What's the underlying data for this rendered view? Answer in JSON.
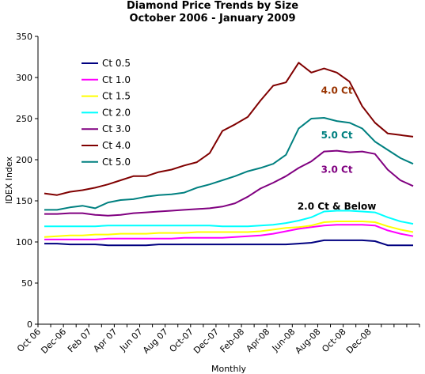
{
  "chart_data": {
    "type": "line",
    "title": "Diamond Price Trends by Size",
    "subtitle": "October 2006 - January 2009",
    "xlabel": "Monthly",
    "ylabel": "IDEX Index",
    "ylim": [
      0,
      350
    ],
    "yticks": [
      0,
      50,
      100,
      150,
      200,
      250,
      300,
      350
    ],
    "grid": false,
    "legend_position": "top-left",
    "x_tick_labels": [
      "Oct 06",
      "Dec-06",
      "Feb 07",
      "Apr 07",
      "Jun 07",
      "Aug 07",
      "Oct-07",
      "Dec-07",
      "Feb-08",
      "Apr-08",
      "Jun-08",
      "Aug-08",
      "Oct-08",
      "Dec-08"
    ],
    "x_tick_every": 2,
    "series": [
      {
        "name": "Ct 0.5",
        "color": "#000080",
        "values": [
          98,
          98,
          97,
          97,
          97,
          96,
          96,
          96,
          96,
          97,
          97,
          97,
          97,
          97,
          97,
          97,
          97,
          97,
          97,
          97,
          98,
          99,
          102,
          102,
          102,
          102,
          101,
          96,
          96,
          96
        ]
      },
      {
        "name": "Ct 1.0",
        "color": "#ff00ff",
        "values": [
          103,
          103,
          103,
          103,
          103,
          104,
          104,
          104,
          104,
          104,
          104,
          105,
          105,
          105,
          105,
          106,
          107,
          108,
          110,
          113,
          116,
          118,
          120,
          121,
          121,
          121,
          120,
          114,
          110,
          107
        ]
      },
      {
        "name": "Ct 1.5",
        "color": "#ffff00",
        "values": [
          106,
          107,
          108,
          108,
          109,
          109,
          110,
          110,
          110,
          111,
          111,
          111,
          112,
          112,
          112,
          112,
          112,
          113,
          115,
          117,
          118,
          120,
          124,
          125,
          125,
          125,
          124,
          119,
          115,
          112
        ]
      },
      {
        "name": "Ct 2.0",
        "color": "#00ffff",
        "values": [
          119,
          119,
          119,
          119,
          119,
          120,
          120,
          120,
          120,
          120,
          120,
          120,
          120,
          120,
          119,
          119,
          119,
          120,
          121,
          123,
          126,
          130,
          137,
          138,
          138,
          137,
          136,
          130,
          125,
          122
        ]
      },
      {
        "name": "Ct 3.0",
        "color": "#800080",
        "values": [
          134,
          134,
          135,
          135,
          133,
          132,
          133,
          135,
          136,
          137,
          138,
          139,
          140,
          141,
          143,
          147,
          155,
          165,
          172,
          180,
          190,
          198,
          210,
          211,
          209,
          210,
          207,
          188,
          175,
          168
        ]
      },
      {
        "name": "Ct 4.0",
        "color": "#800000",
        "values": [
          159,
          157,
          161,
          163,
          166,
          170,
          175,
          180,
          180,
          185,
          188,
          193,
          197,
          208,
          235,
          243,
          252,
          272,
          290,
          294,
          318,
          306,
          311,
          306,
          295,
          265,
          245,
          232,
          230,
          228
        ]
      },
      {
        "name": "Ct 5.0",
        "color": "#008080",
        "values": [
          139,
          139,
          142,
          144,
          141,
          148,
          151,
          152,
          155,
          157,
          158,
          160,
          166,
          170,
          175,
          180,
          186,
          190,
          195,
          206,
          238,
          250,
          251,
          247,
          245,
          238,
          222,
          212,
          202,
          195
        ]
      }
    ],
    "annotations": [
      {
        "text": "4.0 Ct",
        "color": "#993300",
        "x_index": 23.5,
        "y": 285
      },
      {
        "text": "5.0 Ct",
        "color": "#008080",
        "x_index": 23.5,
        "y": 231
      },
      {
        "text": "3.0 Ct",
        "color": "#800080",
        "x_index": 23.5,
        "y": 189
      },
      {
        "text": "2.0 Ct & Below",
        "color": "#000000",
        "x_index": 23.5,
        "y": 144
      }
    ]
  }
}
